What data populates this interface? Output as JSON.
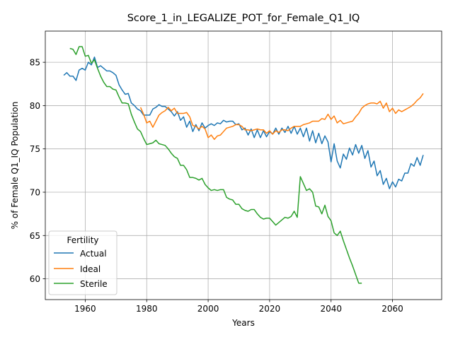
{
  "chart_data": {
    "type": "line",
    "title": "Score_1_in_LEGALIZE_POT_for_Female_Q1_IQ",
    "xlabel": "Years",
    "ylabel": "% of Female Q1_IQ Population",
    "xlim": [
      1947,
      2076
    ],
    "ylim": [
      57.6,
      88.6
    ],
    "xticks": [
      1960,
      1980,
      2000,
      2020,
      2040,
      2060
    ],
    "yticks": [
      60,
      65,
      70,
      75,
      80,
      85
    ],
    "grid": true,
    "legend": {
      "title": "Fertility",
      "position": "lower-left",
      "entries": [
        "Actual",
        "Ideal",
        "Sterile"
      ]
    },
    "series": [
      {
        "name": "Actual",
        "color": "#1f77b4",
        "x": [
          1953,
          1954,
          1955,
          1956,
          1957,
          1958,
          1959,
          1960,
          1961,
          1962,
          1963,
          1964,
          1965,
          1966,
          1967,
          1968,
          1969,
          1970,
          1971,
          1972,
          1973,
          1974,
          1975,
          1976,
          1977,
          1978,
          1979,
          1980,
          1981,
          1982,
          1983,
          1984,
          1985,
          1986,
          1987,
          1988,
          1989,
          1990,
          1991,
          1992,
          1993,
          1994,
          1995,
          1996,
          1997,
          1998,
          1999,
          2000,
          2001,
          2002,
          2003,
          2004,
          2005,
          2006,
          2007,
          2008,
          2009,
          2010,
          2011,
          2012,
          2013,
          2014,
          2015,
          2016,
          2017,
          2018,
          2019,
          2020,
          2021,
          2022,
          2023,
          2024,
          2025,
          2026,
          2027,
          2028,
          2029,
          2030,
          2031,
          2032,
          2033,
          2034,
          2035,
          2036,
          2037,
          2038,
          2039,
          2040,
          2041,
          2042,
          2043,
          2044,
          2045,
          2046,
          2047,
          2048,
          2049,
          2050,
          2051,
          2052,
          2053,
          2054,
          2055,
          2056,
          2057,
          2058,
          2059,
          2060,
          2061,
          2062,
          2063,
          2064,
          2065,
          2066,
          2067,
          2068,
          2069,
          2070
        ],
        "values": [
          83.5,
          83.8,
          83.4,
          83.4,
          82.9,
          84.1,
          84.3,
          84.1,
          85.0,
          84.7,
          85.6,
          84.4,
          84.6,
          84.3,
          84.0,
          84.0,
          83.8,
          83.5,
          82.4,
          81.8,
          81.3,
          81.4,
          80.3,
          80.0,
          79.6,
          79.4,
          78.9,
          78.9,
          78.9,
          79.6,
          79.8,
          80.1,
          79.9,
          79.9,
          79.6,
          79.3,
          78.8,
          79.3,
          78.3,
          78.7,
          77.5,
          78.2,
          77.0,
          77.8,
          77.1,
          78.0,
          77.4,
          77.7,
          77.9,
          77.7,
          78.0,
          77.9,
          78.3,
          78.1,
          78.2,
          78.2,
          77.8,
          77.9,
          77.2,
          77.4,
          76.6,
          77.3,
          76.3,
          77.2,
          76.3,
          77.1,
          76.4,
          77.0,
          76.7,
          77.4,
          76.7,
          77.4,
          76.9,
          77.6,
          76.8,
          77.6,
          76.7,
          77.4,
          76.4,
          77.4,
          75.9,
          77.1,
          75.7,
          76.8,
          75.6,
          76.5,
          75.8,
          73.5,
          75.6,
          73.6,
          72.8,
          74.4,
          73.8,
          75.1,
          74.3,
          75.5,
          74.5,
          75.4,
          73.9,
          74.8,
          72.9,
          73.6,
          71.9,
          72.5,
          70.9,
          71.6,
          70.4,
          71.2,
          70.6,
          71.5,
          71.3,
          72.2,
          72.2,
          73.3,
          73.0,
          74.0,
          73.1,
          74.3
        ]
      },
      {
        "name": "Ideal",
        "color": "#ff7f0e",
        "x": [
          1978,
          1979,
          1980,
          1981,
          1982,
          1983,
          1984,
          1985,
          1986,
          1987,
          1988,
          1989,
          1990,
          1991,
          1992,
          1993,
          1994,
          1995,
          1996,
          1997,
          1998,
          1999,
          2000,
          2001,
          2002,
          2003,
          2004,
          2005,
          2006,
          2007,
          2008,
          2009,
          2010,
          2011,
          2012,
          2013,
          2014,
          2015,
          2016,
          2017,
          2018,
          2019,
          2020,
          2021,
          2022,
          2023,
          2024,
          2025,
          2026,
          2027,
          2028,
          2029,
          2030,
          2031,
          2032,
          2033,
          2034,
          2035,
          2036,
          2037,
          2038,
          2039,
          2040,
          2041,
          2042,
          2043,
          2044,
          2045,
          2046,
          2047,
          2048,
          2049,
          2050,
          2051,
          2052,
          2053,
          2054,
          2055,
          2056,
          2057,
          2058,
          2059,
          2060,
          2061,
          2062,
          2063,
          2064,
          2065,
          2066,
          2067,
          2068,
          2069,
          2070
        ],
        "values": [
          79.8,
          79.0,
          78.0,
          78.2,
          77.5,
          78.2,
          78.9,
          79.2,
          79.4,
          79.8,
          79.4,
          79.7,
          79.1,
          79.1,
          79.1,
          79.2,
          78.7,
          77.7,
          77.6,
          77.3,
          77.6,
          77.3,
          76.3,
          76.6,
          76.1,
          76.5,
          76.6,
          77.0,
          77.4,
          77.5,
          77.6,
          77.8,
          77.8,
          77.6,
          77.2,
          77.2,
          77.1,
          77.2,
          77.3,
          77.2,
          77.2,
          76.8,
          77.1,
          76.7,
          77.1,
          76.9,
          77.2,
          77.2,
          77.1,
          77.4,
          77.6,
          77.6,
          77.6,
          77.8,
          77.9,
          78.0,
          78.2,
          78.2,
          78.2,
          78.5,
          78.4,
          79.0,
          78.4,
          78.8,
          78.0,
          78.3,
          77.9,
          78.0,
          78.1,
          78.2,
          78.7,
          79.1,
          79.7,
          80.0,
          80.2,
          80.3,
          80.3,
          80.2,
          80.5,
          79.7,
          80.3,
          79.3,
          79.7,
          79.1,
          79.5,
          79.3,
          79.5,
          79.7,
          79.9,
          80.2,
          80.6,
          80.9,
          81.4
        ]
      },
      {
        "name": "Sterile",
        "color": "#2ca02c",
        "x": [
          1955,
          1956,
          1957,
          1958,
          1959,
          1960,
          1961,
          1962,
          1963,
          1964,
          1965,
          1966,
          1967,
          1968,
          1969,
          1970,
          1971,
          1972,
          1973,
          1974,
          1975,
          1976,
          1977,
          1978,
          1979,
          1980,
          1981,
          1982,
          1983,
          1984,
          1985,
          1986,
          1987,
          1988,
          1989,
          1990,
          1991,
          1992,
          1993,
          1994,
          1995,
          1996,
          1997,
          1998,
          1999,
          2000,
          2001,
          2002,
          2003,
          2004,
          2005,
          2006,
          2007,
          2008,
          2009,
          2010,
          2011,
          2012,
          2013,
          2014,
          2015,
          2016,
          2017,
          2018,
          2019,
          2020,
          2021,
          2022,
          2023,
          2024,
          2025,
          2026,
          2027,
          2028,
          2029,
          2030,
          2031,
          2032,
          2033,
          2034,
          2035,
          2036,
          2037,
          2038,
          2039,
          2040,
          2041,
          2042,
          2043,
          2044,
          2045,
          2046,
          2047,
          2048,
          2049,
          2050
        ],
        "values": [
          86.6,
          86.5,
          85.9,
          86.8,
          86.8,
          85.7,
          85.8,
          84.9,
          85.3,
          84.3,
          83.4,
          82.7,
          82.2,
          82.2,
          81.9,
          81.8,
          81.0,
          80.3,
          80.3,
          80.2,
          79.0,
          78.1,
          77.3,
          77.0,
          76.2,
          75.5,
          75.6,
          75.7,
          76.0,
          75.6,
          75.5,
          75.4,
          75.0,
          74.5,
          74.1,
          73.9,
          73.1,
          73.1,
          72.6,
          71.7,
          71.7,
          71.6,
          71.4,
          71.6,
          70.9,
          70.5,
          70.2,
          70.3,
          70.2,
          70.3,
          70.3,
          69.4,
          69.2,
          69.1,
          68.6,
          68.6,
          68.1,
          67.9,
          67.8,
          68.0,
          68.0,
          67.5,
          67.1,
          66.9,
          67.0,
          67.0,
          66.6,
          66.2,
          66.5,
          66.8,
          67.1,
          67.0,
          67.2,
          67.8,
          67.1,
          71.8,
          71.0,
          70.2,
          70.4,
          70.0,
          68.4,
          68.3,
          67.5,
          68.5,
          67.2,
          66.7,
          65.3,
          65.0,
          65.5,
          64.4,
          63.4,
          62.4,
          61.5,
          60.5,
          59.5,
          59.5
        ]
      }
    ]
  }
}
